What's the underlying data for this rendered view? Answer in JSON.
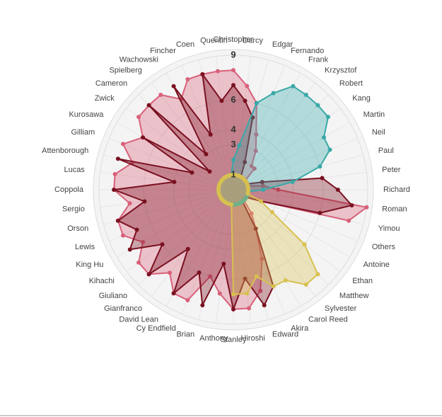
{
  "chart_data": {
    "type": "radar",
    "categories": [
      "Christopher",
      "Darcy",
      "Edgar",
      "Fernando",
      "Frank",
      "Krzysztof",
      "Robert",
      "Kang",
      "Martin",
      "Neil",
      "Paul",
      "Peter",
      "Richard",
      "Roman",
      "Yimou",
      "Others",
      "Antoine",
      "Ethan",
      "Matthew",
      "Sylvester",
      "Carol Reed",
      "Akira",
      "Edward",
      "Hiroshi",
      "Stanley",
      "Anthony",
      "Brian",
      "Cy Endfield",
      "David Lean",
      "Gianfranco",
      "Giuliano",
      "Kihachi",
      "King Hu",
      "Lewis",
      "Orson",
      "Sergio",
      "Coppola",
      "Lucas",
      "Attenborough",
      "Gilliam",
      "Kurosawa",
      "Zwick",
      "Cameron",
      "Spielberg",
      "Wachowski",
      "Fincher",
      "Coen",
      "Quentin"
    ],
    "ylim": [
      0,
      9
    ],
    "yticks": [
      1,
      3,
      4,
      6,
      9
    ],
    "grid": true,
    "series": [
      {
        "color": "#d9607a",
        "values": [
          8,
          7,
          6,
          4,
          3,
          2,
          2,
          1,
          1,
          1,
          1,
          2,
          3,
          9,
          8,
          2,
          1,
          1,
          1,
          2,
          3,
          5,
          7,
          8,
          8,
          7,
          6,
          8,
          8,
          7,
          8,
          8,
          7,
          8,
          8,
          7,
          8,
          8,
          7,
          8,
          7,
          8,
          8,
          8,
          7,
          8,
          8,
          8
        ]
      },
      {
        "color": "#7a1020",
        "values": [
          7,
          6,
          5,
          2,
          1,
          1,
          1,
          1,
          1,
          1,
          2,
          6,
          7,
          8,
          6,
          2,
          1,
          1,
          1,
          1,
          3,
          7,
          8,
          6,
          8,
          5,
          8,
          6,
          8,
          5,
          8,
          6,
          8,
          7,
          8,
          6,
          8,
          4,
          8,
          3,
          7,
          2,
          8,
          3,
          8,
          4,
          8,
          6
        ]
      },
      {
        "color": "#3aa8a8",
        "values": [
          2,
          3,
          6,
          7,
          8,
          8,
          8,
          8,
          7,
          7,
          6,
          4,
          2,
          1,
          1,
          1,
          1,
          1,
          1,
          1,
          1,
          1,
          1,
          1,
          1,
          1,
          1,
          1,
          1,
          1,
          1,
          1,
          1,
          1,
          1,
          1,
          1,
          1,
          1,
          1,
          1,
          1,
          1,
          1,
          1,
          1,
          1,
          1
        ]
      },
      {
        "color": "#d8c050",
        "values": [
          1,
          1,
          1,
          1,
          1,
          1,
          1,
          1,
          1,
          1,
          1,
          1,
          1,
          1,
          1,
          2,
          3,
          6,
          8,
          8,
          7,
          7,
          6,
          7,
          7,
          1,
          1,
          1,
          1,
          1,
          1,
          1,
          1,
          1,
          1,
          1,
          1,
          1,
          1,
          1,
          1,
          1,
          1,
          1,
          1,
          1,
          1,
          1
        ]
      }
    ]
  }
}
